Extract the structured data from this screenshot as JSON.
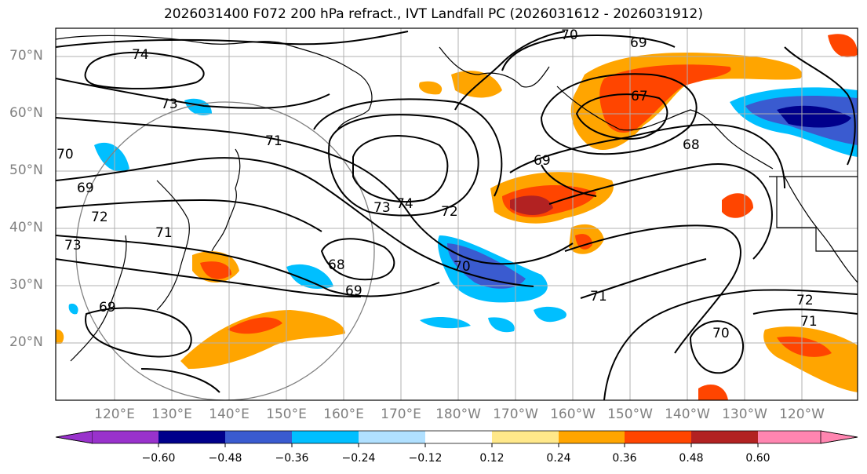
{
  "title": "2026031400 F072 200 hPa refract., IVT Landfall PC (2026031612 - 2026031912)",
  "lat_labels": [
    "70°N",
    "60°N",
    "50°N",
    "40°N",
    "30°N",
    "20°N"
  ],
  "lon_labels": [
    "120°E",
    "130°E",
    "140°E",
    "150°E",
    "160°E",
    "170°E",
    "180°W",
    "170°W",
    "160°W",
    "150°W",
    "140°W",
    "130°W",
    "120°W"
  ],
  "colorbar": {
    "colors": [
      "#9932cc",
      "#00008b",
      "#3a5bd0",
      "#00bfff",
      "#b0e0ff",
      "#ffffff",
      "#ffe88a",
      "#ffa500",
      "#ff4500",
      "#b22222",
      "#ff85b0"
    ],
    "ticks": [
      "−0.60",
      "−0.48",
      "−0.36",
      "−0.24",
      "−0.12",
      "0.12",
      "0.24",
      "0.36",
      "0.48",
      "0.60"
    ]
  },
  "contour_labels": [
    "74",
    "73",
    "70",
    "69",
    "71",
    "72",
    "73",
    "71",
    "69",
    "68",
    "69",
    "74",
    "73",
    "72",
    "70",
    "71",
    "70",
    "69",
    "67",
    "68",
    "72",
    "71",
    "70",
    "69"
  ]
}
